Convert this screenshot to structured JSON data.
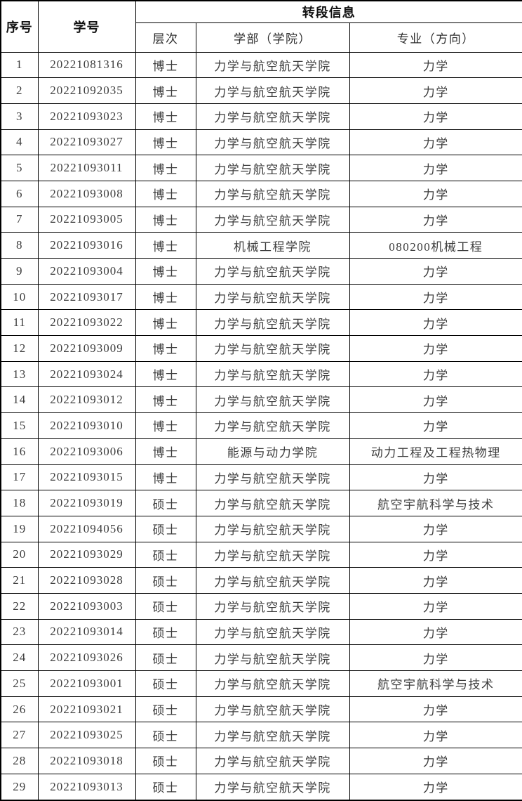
{
  "colors": {
    "border": "#000000",
    "header_text": "#111111",
    "subheader_text": "#2e2e2e",
    "body_text": "#3d3d3d",
    "background": "#ffffff"
  },
  "table": {
    "headers": {
      "col_index": "序号",
      "col_student_id": "学号",
      "group_transfer_info": "转段信息",
      "col_level": "层次",
      "col_college": "学部（学院）",
      "col_major": "专业（方向）"
    },
    "rows": [
      {
        "no": "1",
        "student_id": "20221081316",
        "level": "博士",
        "college": "力学与航空航天学院",
        "major": "力学"
      },
      {
        "no": "2",
        "student_id": "20221092035",
        "level": "博士",
        "college": "力学与航空航天学院",
        "major": "力学"
      },
      {
        "no": "3",
        "student_id": "20221093023",
        "level": "博士",
        "college": "力学与航空航天学院",
        "major": "力学"
      },
      {
        "no": "4",
        "student_id": "20221093027",
        "level": "博士",
        "college": "力学与航空航天学院",
        "major": "力学"
      },
      {
        "no": "5",
        "student_id": "20221093011",
        "level": "博士",
        "college": "力学与航空航天学院",
        "major": "力学"
      },
      {
        "no": "6",
        "student_id": "20221093008",
        "level": "博士",
        "college": "力学与航空航天学院",
        "major": "力学"
      },
      {
        "no": "7",
        "student_id": "20221093005",
        "level": "博士",
        "college": "力学与航空航天学院",
        "major": "力学"
      },
      {
        "no": "8",
        "student_id": "20221093016",
        "level": "博士",
        "college": "机械工程学院",
        "major": "080200机械工程"
      },
      {
        "no": "9",
        "student_id": "20221093004",
        "level": "博士",
        "college": "力学与航空航天学院",
        "major": "力学"
      },
      {
        "no": "10",
        "student_id": "20221093017",
        "level": "博士",
        "college": "力学与航空航天学院",
        "major": "力学"
      },
      {
        "no": "11",
        "student_id": "20221093022",
        "level": "博士",
        "college": "力学与航空航天学院",
        "major": "力学"
      },
      {
        "no": "12",
        "student_id": "20221093009",
        "level": "博士",
        "college": "力学与航空航天学院",
        "major": "力学"
      },
      {
        "no": "13",
        "student_id": "20221093024",
        "level": "博士",
        "college": "力学与航空航天学院",
        "major": "力学"
      },
      {
        "no": "14",
        "student_id": "20221093012",
        "level": "博士",
        "college": "力学与航空航天学院",
        "major": "力学"
      },
      {
        "no": "15",
        "student_id": "20221093010",
        "level": "博士",
        "college": "力学与航空航天学院",
        "major": "力学"
      },
      {
        "no": "16",
        "student_id": "20221093006",
        "level": "博士",
        "college": "能源与动力学院",
        "major": "动力工程及工程热物理"
      },
      {
        "no": "17",
        "student_id": "20221093015",
        "level": "博士",
        "college": "力学与航空航天学院",
        "major": "力学"
      },
      {
        "no": "18",
        "student_id": "20221093019",
        "level": "硕士",
        "college": "力学与航空航天学院",
        "major": "航空宇航科学与技术"
      },
      {
        "no": "19",
        "student_id": "20221094056",
        "level": "硕士",
        "college": "力学与航空航天学院",
        "major": "力学"
      },
      {
        "no": "20",
        "student_id": "20221093029",
        "level": "硕士",
        "college": "力学与航空航天学院",
        "major": "力学"
      },
      {
        "no": "21",
        "student_id": "20221093028",
        "level": "硕士",
        "college": "力学与航空航天学院",
        "major": "力学"
      },
      {
        "no": "22",
        "student_id": "20221093003",
        "level": "硕士",
        "college": "力学与航空航天学院",
        "major": "力学"
      },
      {
        "no": "23",
        "student_id": "20221093014",
        "level": "硕士",
        "college": "力学与航空航天学院",
        "major": "力学"
      },
      {
        "no": "24",
        "student_id": "20221093026",
        "level": "硕士",
        "college": "力学与航空航天学院",
        "major": "力学"
      },
      {
        "no": "25",
        "student_id": "20221093001",
        "level": "硕士",
        "college": "力学与航空航天学院",
        "major": "航空宇航科学与技术"
      },
      {
        "no": "26",
        "student_id": "20221093021",
        "level": "硕士",
        "college": "力学与航空航天学院",
        "major": "力学"
      },
      {
        "no": "27",
        "student_id": "20221093025",
        "level": "硕士",
        "college": "力学与航空航天学院",
        "major": "力学"
      },
      {
        "no": "28",
        "student_id": "20221093018",
        "level": "硕士",
        "college": "力学与航空航天学院",
        "major": "力学"
      },
      {
        "no": "29",
        "student_id": "20221093013",
        "level": "硕士",
        "college": "力学与航空航天学院",
        "major": "力学"
      }
    ]
  }
}
